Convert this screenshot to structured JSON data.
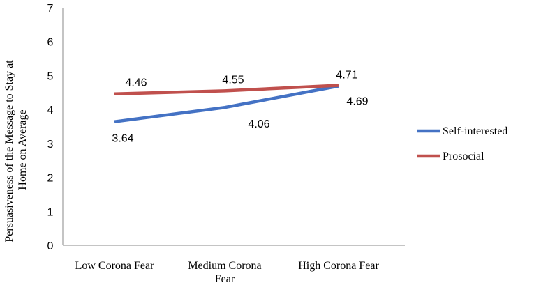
{
  "chart_data": {
    "type": "line",
    "categories": [
      [
        "Low Corona Fear"
      ],
      [
        "Medium Corona",
        "Fear"
      ],
      [
        "High Corona Fear"
      ]
    ],
    "ylabel_lines": [
      "Persuasiveness of the Message  to Stay at",
      "Home on Average"
    ],
    "ylim": [
      0,
      7
    ],
    "yticks": [
      "0",
      "1",
      "2",
      "3",
      "4",
      "5",
      "6",
      "7"
    ],
    "grid": false,
    "legend_position": "right",
    "series": [
      {
        "name": "Self-interested",
        "color": "#4472C4",
        "values": [
          3.64,
          4.06,
          4.69
        ],
        "labels": [
          "3.64",
          "4.06",
          "4.69"
        ],
        "label_side": "below"
      },
      {
        "name": "Prosocial",
        "color": "#C0504D",
        "values": [
          4.46,
          4.55,
          4.71
        ],
        "labels": [
          "4.46",
          "4.55",
          "4.71"
        ],
        "label_side": "above"
      }
    ]
  }
}
